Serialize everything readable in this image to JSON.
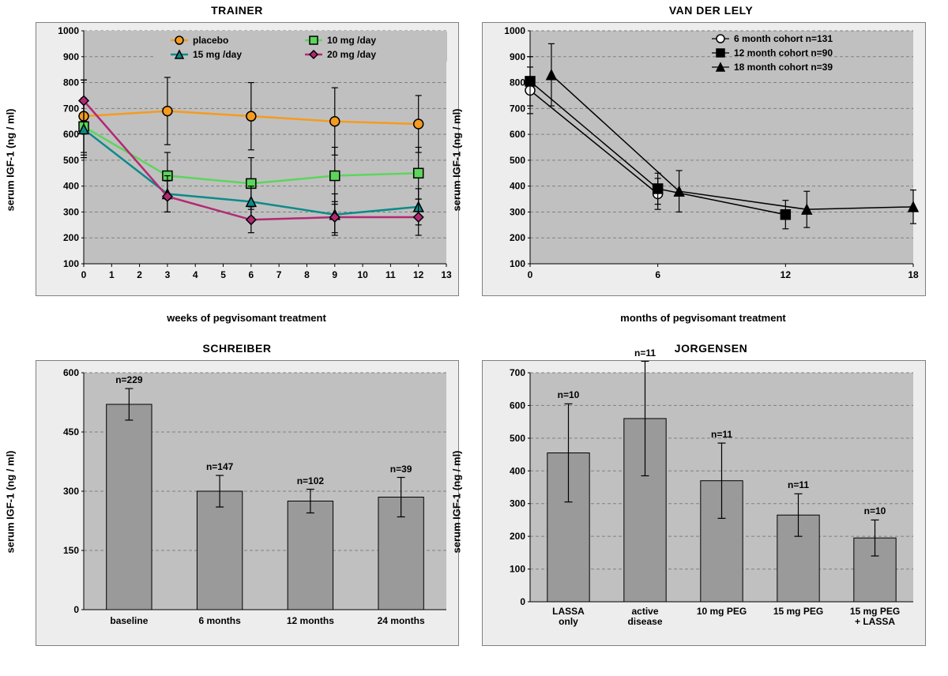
{
  "colors": {
    "panel_bg": "#ededed",
    "plot_bg": "#c0c0c0",
    "grid": "#808080",
    "axis": "#000000",
    "bar_fill": "#9a9a9a",
    "bar_border": "#000000",
    "error": "#000000",
    "placebo": "#f59b1e",
    "d10": "#5dd55d",
    "d15": "#0d8a8a",
    "d20": "#b22973",
    "white_marker": "#ffffff",
    "black": "#000000"
  },
  "trainer": {
    "title": "TRAINER",
    "ylabel": "serum IGF-1 (ng / ml)",
    "xlabel": "weeks of pegvisomant treatment",
    "ylim": [
      100,
      1000
    ],
    "ytick_step": 100,
    "xlim": [
      0,
      13
    ],
    "xtick_step": 1,
    "legend": [
      {
        "label": "placebo",
        "color": "#f59b1e",
        "marker": "circle"
      },
      {
        "label": "10 mg /day",
        "color": "#5dd55d",
        "marker": "square"
      },
      {
        "label": "15 mg /day",
        "color": "#0d8a8a",
        "marker": "triangle"
      },
      {
        "label": "20 mg /day",
        "color": "#b22973",
        "marker": "diamond"
      }
    ],
    "series": {
      "placebo": {
        "color": "#f59b1e",
        "marker": "circle",
        "x": [
          0,
          3,
          6,
          9,
          12
        ],
        "y": [
          670,
          690,
          670,
          650,
          640
        ],
        "err": [
          140,
          130,
          130,
          130,
          110
        ]
      },
      "d10": {
        "color": "#5dd55d",
        "marker": "square",
        "x": [
          0,
          3,
          6,
          9,
          12
        ],
        "y": [
          630,
          440,
          410,
          440,
          450
        ],
        "err": [
          110,
          90,
          100,
          110,
          100
        ]
      },
      "d15": {
        "color": "#0d8a8a",
        "marker": "triangle",
        "x": [
          0,
          3,
          6,
          9,
          12
        ],
        "y": [
          620,
          370,
          340,
          290,
          320
        ],
        "err": [
          110,
          70,
          60,
          80,
          70
        ]
      },
      "d20": {
        "color": "#b22973",
        "marker": "diamond",
        "x": [
          0,
          3,
          6,
          9,
          12
        ],
        "y": [
          730,
          360,
          270,
          280,
          280
        ],
        "err": [
          80,
          60,
          50,
          60,
          70
        ]
      }
    }
  },
  "vanderlely": {
    "title": "VAN DER LELY",
    "ylabel": "serum IGF-1 (ng / ml)",
    "xlabel": "months of pegvisomant treatment",
    "ylim": [
      100,
      1000
    ],
    "ytick_step": 100,
    "xlim": [
      0,
      18
    ],
    "xticks": [
      0,
      6,
      12,
      18
    ],
    "legend": [
      {
        "label": "6 month cohort n=131",
        "marker": "open-circle"
      },
      {
        "label": "12 month cohort n=90",
        "marker": "filled-square"
      },
      {
        "label": "18 month cohort n=39",
        "marker": "filled-triangle"
      }
    ],
    "series": {
      "m6": {
        "marker": "open-circle",
        "x": [
          0,
          6
        ],
        "y": [
          770,
          370
        ],
        "err": [
          90,
          60
        ]
      },
      "m12": {
        "marker": "filled-square",
        "x": [
          0,
          6,
          12
        ],
        "y": [
          805,
          390,
          290
        ],
        "err": [
          95,
          60,
          55
        ]
      },
      "m18": {
        "marker": "filled-triangle",
        "x": [
          1,
          7,
          13,
          18
        ],
        "y": [
          830,
          380,
          310,
          320
        ],
        "err": [
          120,
          80,
          70,
          65
        ]
      }
    }
  },
  "schreiber": {
    "title": "SCHREIBER",
    "ylabel": "serum IGF-1 (ng / ml)",
    "ylim": [
      0,
      600
    ],
    "ytick_step": 150,
    "bars": [
      {
        "label": "baseline",
        "value": 520,
        "err": 40,
        "n": "n=229"
      },
      {
        "label": "6 months",
        "value": 300,
        "err": 40,
        "n": "n=147"
      },
      {
        "label": "12 months",
        "value": 275,
        "err": 30,
        "n": "n=102"
      },
      {
        "label": "24 months",
        "value": 285,
        "err": 50,
        "n": "n=39"
      }
    ]
  },
  "jorgensen": {
    "title": "JORGENSEN",
    "ylabel": "serum IGF-1 (ng / ml)",
    "ylim": [
      0,
      700
    ],
    "ytick_step": 100,
    "bars": [
      {
        "label": "LASSA only",
        "value": 455,
        "err": 150,
        "n": "n=10"
      },
      {
        "label": "active disease",
        "value": 560,
        "err": 175,
        "n": "n=11"
      },
      {
        "label": "10 mg PEG",
        "value": 370,
        "err": 115,
        "n": "n=11"
      },
      {
        "label": "15 mg PEG",
        "value": 265,
        "err": 65,
        "n": "n=11"
      },
      {
        "label": "15 mg PEG + LASSA",
        "value": 195,
        "err": 55,
        "n": "n=10"
      }
    ]
  }
}
